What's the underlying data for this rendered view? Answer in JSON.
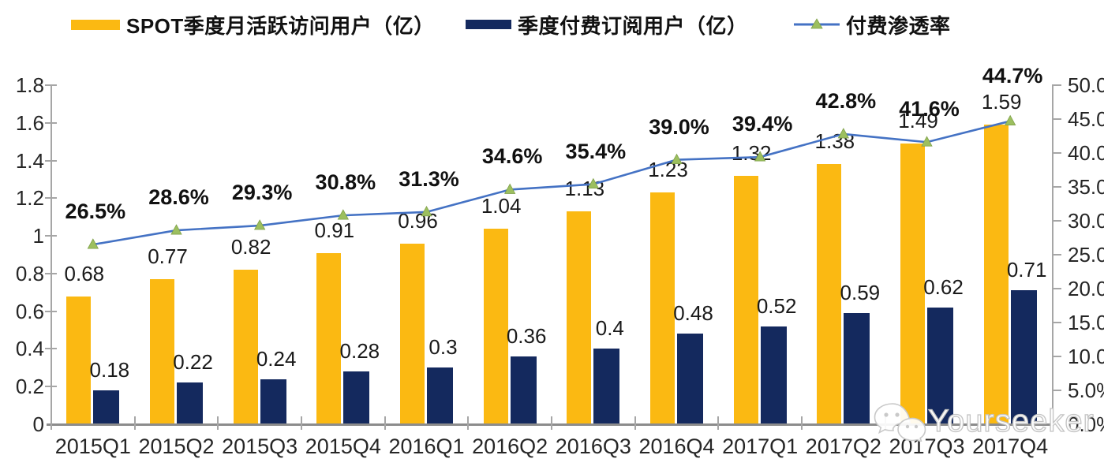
{
  "legend": {
    "items": [
      {
        "label": "SPOT季度月活跃访问用户（亿）",
        "swatch": "bar",
        "color": "#FBB912"
      },
      {
        "label": "季度付费订阅用户（亿）",
        "swatch": "bar",
        "color": "#14295E"
      },
      {
        "label": "付费渗透率",
        "swatch": "line-marker",
        "line_color": "#4472C4",
        "marker_color": "#9CBF5F"
      }
    ]
  },
  "watermark": {
    "text": "Yourseeker",
    "icon": "wechat-icon"
  },
  "chart_data": {
    "type": "bar+line combo",
    "title": "",
    "categories": [
      "2015Q1",
      "2015Q2",
      "2015Q3",
      "2015Q4",
      "2016Q1",
      "2016Q2",
      "2016Q3",
      "2016Q4",
      "2017Q1",
      "2017Q2",
      "2017Q3",
      "2017Q4"
    ],
    "series": [
      {
        "name": "SPOT季度月活跃访问用户（亿）",
        "type": "bar",
        "axis": "left",
        "color": "#FBB912",
        "values": [
          0.68,
          0.77,
          0.82,
          0.91,
          0.96,
          1.04,
          1.13,
          1.23,
          1.32,
          1.38,
          1.49,
          1.59
        ],
        "labels": [
          "0.68",
          "0.77",
          "0.82",
          "0.91",
          "0.96",
          "1.04",
          "1.13",
          "1.23",
          "1.32",
          "1.38",
          "1.49",
          "1.59"
        ]
      },
      {
        "name": "季度付费订阅用户（亿）",
        "type": "bar",
        "axis": "left",
        "color": "#14295E",
        "values": [
          0.18,
          0.22,
          0.24,
          0.28,
          0.3,
          0.36,
          0.4,
          0.48,
          0.52,
          0.59,
          0.62,
          0.71
        ],
        "labels": [
          "0.18",
          "0.22",
          "0.24",
          "0.28",
          "0.3",
          "0.36",
          "0.4",
          "0.48",
          "0.52",
          "0.59",
          "0.62",
          "0.71"
        ]
      },
      {
        "name": "付费渗透率",
        "type": "line",
        "axis": "right",
        "color": "#4472C4",
        "marker": "triangle",
        "marker_color": "#9CBF5F",
        "values_percent": [
          26.5,
          28.6,
          29.3,
          30.8,
          31.3,
          34.6,
          35.4,
          39.0,
          39.4,
          42.8,
          41.6,
          44.7
        ],
        "labels": [
          "26.5%",
          "28.6%",
          "29.3%",
          "30.8%",
          "31.3%",
          "34.6%",
          "35.4%",
          "39.0%",
          "39.4%",
          "42.8%",
          "41.6%",
          "44.7%"
        ]
      }
    ],
    "left_axis": {
      "min": 0,
      "max": 1.8,
      "step": 0.2,
      "tick_labels": [
        "0",
        "0.2",
        "0.4",
        "0.6",
        "0.8",
        "1",
        "1.2",
        "1.4",
        "1.6",
        "1.8"
      ]
    },
    "right_axis": {
      "min_percent": 0,
      "max_percent": 50,
      "step_percent": 5,
      "tick_labels": [
        "0.0%",
        "5.0%",
        "10.0%",
        "15.0%",
        "20.0%",
        "25.0%",
        "30.0%",
        "35.0%",
        "40.0%",
        "45.0%",
        "50.0%"
      ]
    },
    "grid": false,
    "legend_position": "top"
  }
}
